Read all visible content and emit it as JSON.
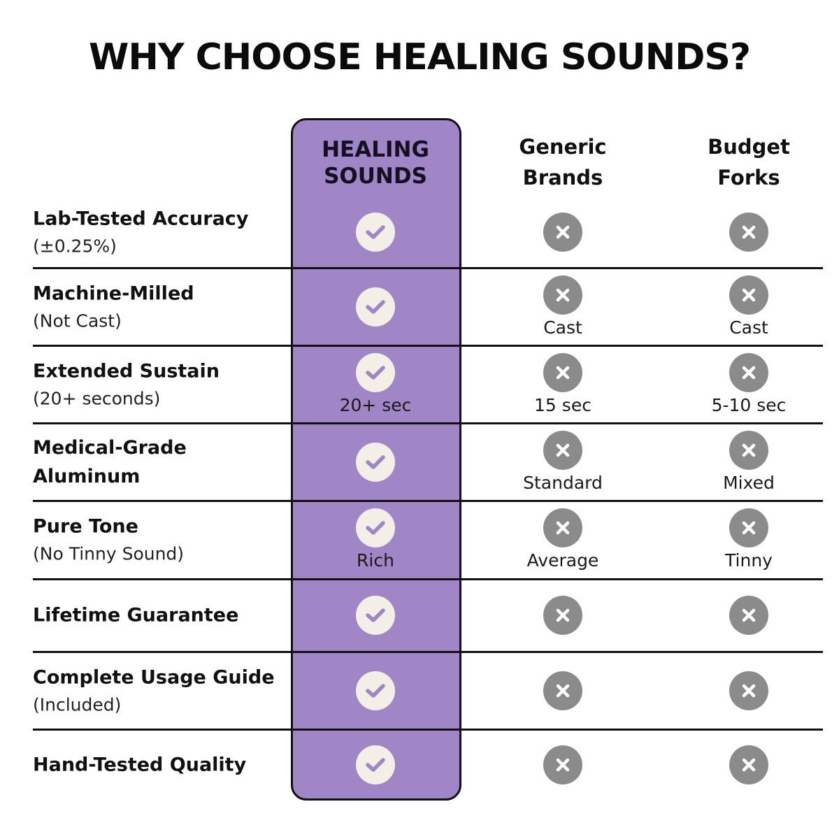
{
  "title": "WHY CHOOSE HEALING SOUNDS?",
  "colors": {
    "accent": "#a085c7",
    "check_bg": "#f3efe7",
    "check_mark": "#a085c7",
    "cross_bg": "#8b8b8b",
    "cross_mark": "#ffffff"
  },
  "columns": [
    {
      "line1": "HEALING",
      "line2": "SOUNDS"
    },
    {
      "line1": "Generic",
      "line2": "Brands"
    },
    {
      "line1": "Budget",
      "line2": "Forks"
    }
  ],
  "rows": [
    {
      "feature": "Lab-Tested Accuracy",
      "sub": "(±0.25%)",
      "cells": [
        {
          "icon": "check-icon",
          "label": ""
        },
        {
          "icon": "x-icon",
          "label": ""
        },
        {
          "icon": "x-icon",
          "label": ""
        }
      ]
    },
    {
      "feature": "Machine-Milled",
      "sub": "(Not Cast)",
      "cells": [
        {
          "icon": "check-icon",
          "label": ""
        },
        {
          "icon": "x-icon",
          "label": "Cast"
        },
        {
          "icon": "x-icon",
          "label": "Cast"
        }
      ]
    },
    {
      "feature": "Extended Sustain",
      "sub": "(20+ seconds)",
      "cells": [
        {
          "icon": "check-icon",
          "label": "20+ sec"
        },
        {
          "icon": "x-icon",
          "label": "15 sec"
        },
        {
          "icon": "x-icon",
          "label": "5-10 sec"
        }
      ]
    },
    {
      "feature": "Medical-Grade Aluminum",
      "sub": "",
      "cells": [
        {
          "icon": "check-icon",
          "label": ""
        },
        {
          "icon": "x-icon",
          "label": "Standard"
        },
        {
          "icon": "x-icon",
          "label": "Mixed"
        }
      ]
    },
    {
      "feature": "Pure Tone",
      "sub": "(No Tinny Sound)",
      "cells": [
        {
          "icon": "check-icon",
          "label": "Rich"
        },
        {
          "icon": "x-icon",
          "label": "Average"
        },
        {
          "icon": "x-icon",
          "label": "Tinny"
        }
      ]
    },
    {
      "feature": "Lifetime Guarantee",
      "sub": "",
      "cells": [
        {
          "icon": "check-icon",
          "label": ""
        },
        {
          "icon": "x-icon",
          "label": ""
        },
        {
          "icon": "x-icon",
          "label": ""
        }
      ]
    },
    {
      "feature": "Complete Usage Guide",
      "sub": "(Included)",
      "cells": [
        {
          "icon": "check-icon",
          "label": ""
        },
        {
          "icon": "x-icon",
          "label": ""
        },
        {
          "icon": "x-icon",
          "label": ""
        }
      ]
    },
    {
      "feature": "Hand-Tested Quality",
      "sub": "",
      "cells": [
        {
          "icon": "check-icon",
          "label": ""
        },
        {
          "icon": "x-icon",
          "label": ""
        },
        {
          "icon": "x-icon",
          "label": ""
        }
      ]
    }
  ]
}
